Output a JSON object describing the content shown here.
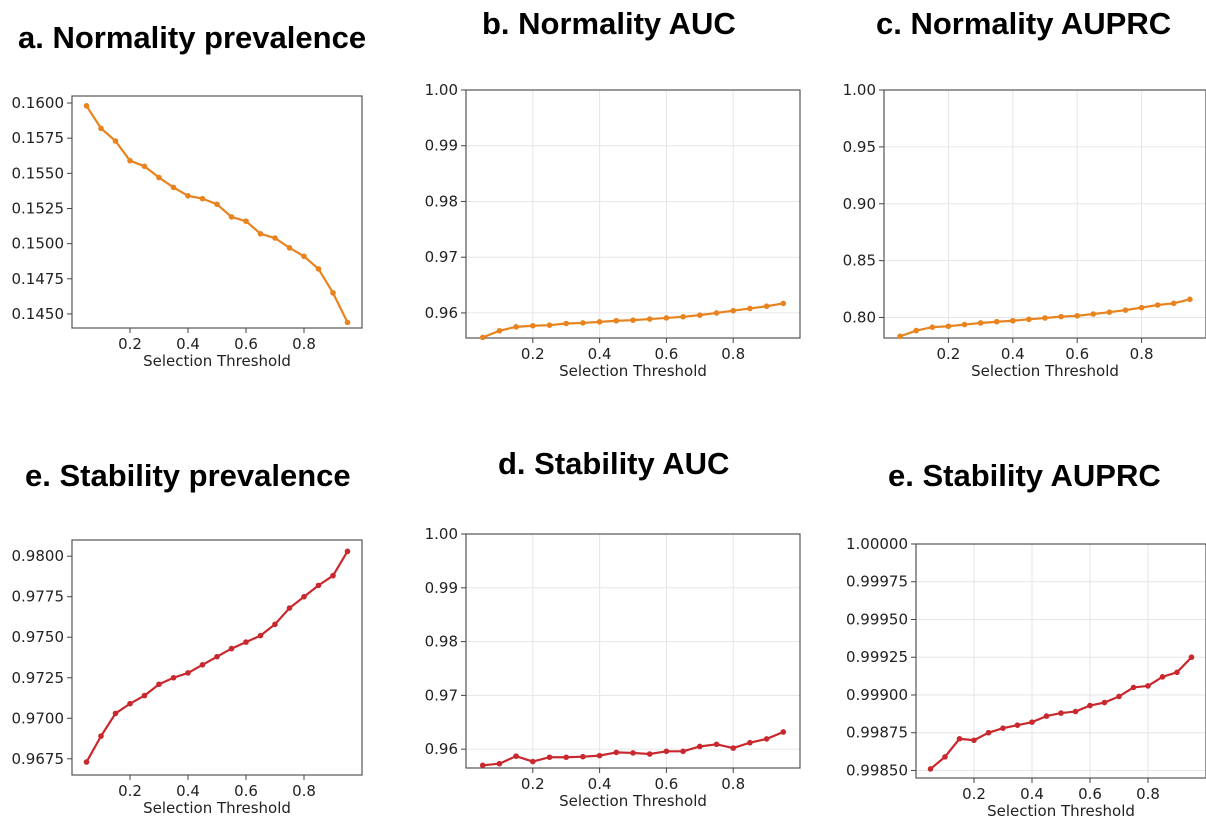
{
  "chart_data": [
    {
      "type": "line",
      "title": "a. Normality prevalence",
      "xlabel": "Selection Threshold",
      "ylabel": "",
      "xlim": [
        0.0,
        1.0
      ],
      "ylim": [
        0.144,
        0.1605
      ],
      "xticks": [
        0.2,
        0.4,
        0.6,
        0.8
      ],
      "xtick_labels": [
        "0.2",
        "0.4",
        "0.6",
        "0.8"
      ],
      "yticks": [
        0.145,
        0.1475,
        0.15,
        0.1525,
        0.155,
        0.1575,
        0.16
      ],
      "ytick_labels": [
        "0.1450",
        "0.1475",
        "0.1500",
        "0.1525",
        "0.1550",
        "0.1575",
        "0.1600"
      ],
      "grid": false,
      "color": "#E8831E",
      "x": [
        0.05,
        0.1,
        0.15,
        0.2,
        0.25,
        0.3,
        0.35,
        0.4,
        0.45,
        0.5,
        0.55,
        0.6,
        0.65,
        0.7,
        0.75,
        0.8,
        0.85,
        0.9,
        0.95
      ],
      "values": [
        0.1598,
        0.1582,
        0.1573,
        0.1559,
        0.1555,
        0.1547,
        0.154,
        0.1534,
        0.1532,
        0.1528,
        0.1519,
        0.1516,
        0.1507,
        0.1504,
        0.1497,
        0.1491,
        0.1482,
        0.1465,
        0.1444
      ]
    },
    {
      "type": "line",
      "title": "b. Normality AUC",
      "xlabel": "Selection Threshold",
      "ylabel": "",
      "xlim": [
        0.0,
        1.0
      ],
      "ylim": [
        0.9555,
        1.0
      ],
      "xticks": [
        0.2,
        0.4,
        0.6,
        0.8
      ],
      "xtick_labels": [
        "0.2",
        "0.4",
        "0.6",
        "0.8"
      ],
      "yticks": [
        0.96,
        0.97,
        0.98,
        0.99,
        1.0
      ],
      "ytick_labels": [
        "0.96",
        "0.97",
        "0.98",
        "0.99",
        "1.00"
      ],
      "grid": true,
      "color": "#E8831E",
      "x": [
        0.05,
        0.1,
        0.15,
        0.2,
        0.25,
        0.3,
        0.35,
        0.4,
        0.45,
        0.5,
        0.55,
        0.6,
        0.65,
        0.7,
        0.75,
        0.8,
        0.85,
        0.9,
        0.95
      ],
      "values": [
        0.9556,
        0.9568,
        0.9575,
        0.9577,
        0.9578,
        0.9581,
        0.9582,
        0.9584,
        0.9586,
        0.9587,
        0.9589,
        0.9591,
        0.9593,
        0.9596,
        0.96,
        0.9604,
        0.9608,
        0.9612,
        0.9617
      ]
    },
    {
      "type": "line",
      "title": "c. Normality AUPRC",
      "xlabel": "Selection Threshold",
      "ylabel": "",
      "xlim": [
        0.0,
        1.0
      ],
      "ylim": [
        0.782,
        1.0
      ],
      "xticks": [
        0.2,
        0.4,
        0.6,
        0.8
      ],
      "xtick_labels": [
        "0.2",
        "0.4",
        "0.6",
        "0.8"
      ],
      "yticks": [
        0.8,
        0.85,
        0.9,
        0.95,
        1.0
      ],
      "ytick_labels": [
        "0.80",
        "0.85",
        "0.90",
        "0.95",
        "1.00"
      ],
      "grid": true,
      "color": "#E8831E",
      "x": [
        0.05,
        0.1,
        0.15,
        0.2,
        0.25,
        0.3,
        0.35,
        0.4,
        0.45,
        0.5,
        0.55,
        0.6,
        0.65,
        0.7,
        0.75,
        0.8,
        0.85,
        0.9,
        0.95
      ],
      "values": [
        0.7835,
        0.7885,
        0.7915,
        0.7923,
        0.7938,
        0.7952,
        0.7963,
        0.7972,
        0.7984,
        0.7996,
        0.8008,
        0.8015,
        0.8031,
        0.8047,
        0.8065,
        0.8087,
        0.811,
        0.8125,
        0.816
      ]
    },
    {
      "type": "line",
      "title": "e. Stability prevalence",
      "xlabel": "Selection Threshold",
      "ylabel": "",
      "xlim": [
        0.0,
        1.0
      ],
      "ylim": [
        0.9665,
        0.981
      ],
      "xticks": [
        0.2,
        0.4,
        0.6,
        0.8
      ],
      "xtick_labels": [
        "0.2",
        "0.4",
        "0.6",
        "0.8"
      ],
      "yticks": [
        0.9675,
        0.97,
        0.9725,
        0.975,
        0.9775,
        0.98
      ],
      "ytick_labels": [
        "0.9675",
        "0.9700",
        "0.9725",
        "0.9750",
        "0.9775",
        "0.9800"
      ],
      "grid": false,
      "color": "#C8282E",
      "x": [
        0.05,
        0.1,
        0.15,
        0.2,
        0.25,
        0.3,
        0.35,
        0.4,
        0.45,
        0.5,
        0.55,
        0.6,
        0.65,
        0.7,
        0.75,
        0.8,
        0.85,
        0.9,
        0.95
      ],
      "values": [
        0.9673,
        0.9689,
        0.9703,
        0.9709,
        0.9714,
        0.9721,
        0.9725,
        0.9728,
        0.9733,
        0.9738,
        0.9743,
        0.9747,
        0.9751,
        0.9758,
        0.9768,
        0.9775,
        0.9782,
        0.9788,
        0.9803
      ]
    },
    {
      "type": "line",
      "title": "d. Stability AUC",
      "xlabel": "Selection Threshold",
      "ylabel": "",
      "xlim": [
        0.0,
        1.0
      ],
      "ylim": [
        0.9565,
        1.0
      ],
      "xticks": [
        0.2,
        0.4,
        0.6,
        0.8
      ],
      "xtick_labels": [
        "0.2",
        "0.4",
        "0.6",
        "0.8"
      ],
      "yticks": [
        0.96,
        0.97,
        0.98,
        0.99,
        1.0
      ],
      "ytick_labels": [
        "0.96",
        "0.97",
        "0.98",
        "0.99",
        "1.00"
      ],
      "grid": true,
      "color": "#C8282E",
      "x": [
        0.05,
        0.1,
        0.15,
        0.2,
        0.25,
        0.3,
        0.35,
        0.4,
        0.45,
        0.5,
        0.55,
        0.6,
        0.65,
        0.7,
        0.75,
        0.8,
        0.85,
        0.9,
        0.95
      ],
      "values": [
        0.957,
        0.9573,
        0.9587,
        0.9577,
        0.9585,
        0.9585,
        0.9586,
        0.9588,
        0.9594,
        0.9593,
        0.9591,
        0.9596,
        0.9596,
        0.9605,
        0.9609,
        0.9602,
        0.9612,
        0.9619,
        0.9632
      ]
    },
    {
      "type": "line",
      "title": "e. Stability AUPRC",
      "xlabel": "Selection Threshold",
      "ylabel": "",
      "xlim": [
        0.0,
        1.0
      ],
      "ylim": [
        0.99845,
        1.0
      ],
      "xticks": [
        0.2,
        0.4,
        0.6,
        0.8
      ],
      "xtick_labels": [
        "0.2",
        "0.4",
        "0.6",
        "0.8"
      ],
      "yticks": [
        0.9985,
        0.99875,
        0.999,
        0.99925,
        0.9995,
        0.99975,
        1.0
      ],
      "ytick_labels": [
        "0.99850",
        "0.99875",
        "0.99900",
        "0.99925",
        "0.99950",
        "0.99975",
        "1.00000"
      ],
      "grid": true,
      "color": "#C8282E",
      "x": [
        0.05,
        0.1,
        0.15,
        0.2,
        0.25,
        0.3,
        0.35,
        0.4,
        0.45,
        0.5,
        0.55,
        0.6,
        0.65,
        0.7,
        0.75,
        0.8,
        0.85,
        0.9,
        0.95
      ],
      "values": [
        0.99851,
        0.99859,
        0.99871,
        0.9987,
        0.99875,
        0.99878,
        0.9988,
        0.99882,
        0.99886,
        0.99888,
        0.99889,
        0.99893,
        0.99895,
        0.99899,
        0.99905,
        0.99906,
        0.99912,
        0.99915,
        0.99925
      ]
    }
  ]
}
